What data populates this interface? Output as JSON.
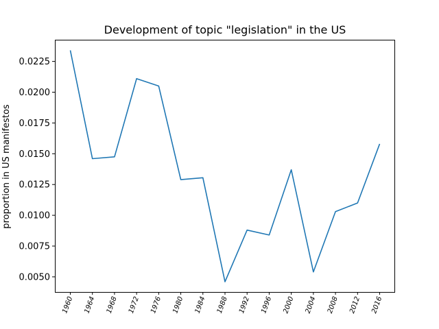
{
  "chart_data": {
    "type": "line",
    "title": "Development of topic \"legislation\" in the US",
    "xlabel": "",
    "ylabel": "proportion in US manifestos",
    "x": [
      "1960",
      "1964",
      "1968",
      "1972",
      "1976",
      "1980",
      "1984",
      "1988",
      "1992",
      "1996",
      "2000",
      "2004",
      "2008",
      "2012",
      "2016"
    ],
    "series": [
      {
        "values": [
          0.0234,
          0.0146,
          0.01475,
          0.0211,
          0.0205,
          0.0129,
          0.01305,
          0.0046,
          0.0088,
          0.0084,
          0.0137,
          0.0054,
          0.0103,
          0.011,
          0.0158
        ],
        "color": "#1f77b4"
      }
    ],
    "yticks": [
      0.005,
      0.0075,
      0.01,
      0.0125,
      0.015,
      0.0175,
      0.02,
      0.0225
    ],
    "ytick_labels": [
      "0.0050",
      "0.0075",
      "0.0100",
      "0.0125",
      "0.0150",
      "0.0175",
      "0.0200",
      "0.0225"
    ],
    "ylim": [
      0.00377,
      0.02426
    ],
    "grid": false,
    "legend": "none"
  }
}
